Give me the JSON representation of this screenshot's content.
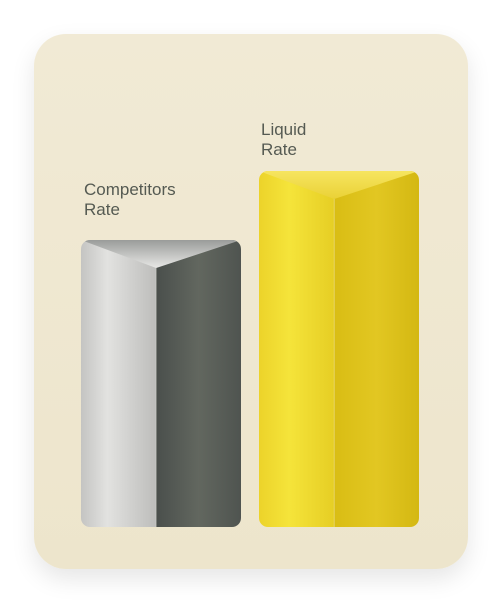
{
  "chart_data": {
    "type": "bar",
    "categories": [
      "Competitors Rate",
      "Liquid Rate"
    ],
    "labels": [
      {
        "line1": "Competitors",
        "line2": "Rate"
      },
      {
        "line1": "Liquid",
        "line2": "Rate"
      }
    ],
    "values": [
      100,
      124
    ],
    "xlabel": "",
    "ylabel": "",
    "grid": false,
    "legend": "none",
    "colors": {
      "card_background": "#efe8d2",
      "competitors_left": "#d3d3d1",
      "competitors_right": "#5c615d",
      "liquid_left": "#f0dc2a",
      "liquid_right": "#dcc21c",
      "label_text": "#555a52"
    }
  }
}
